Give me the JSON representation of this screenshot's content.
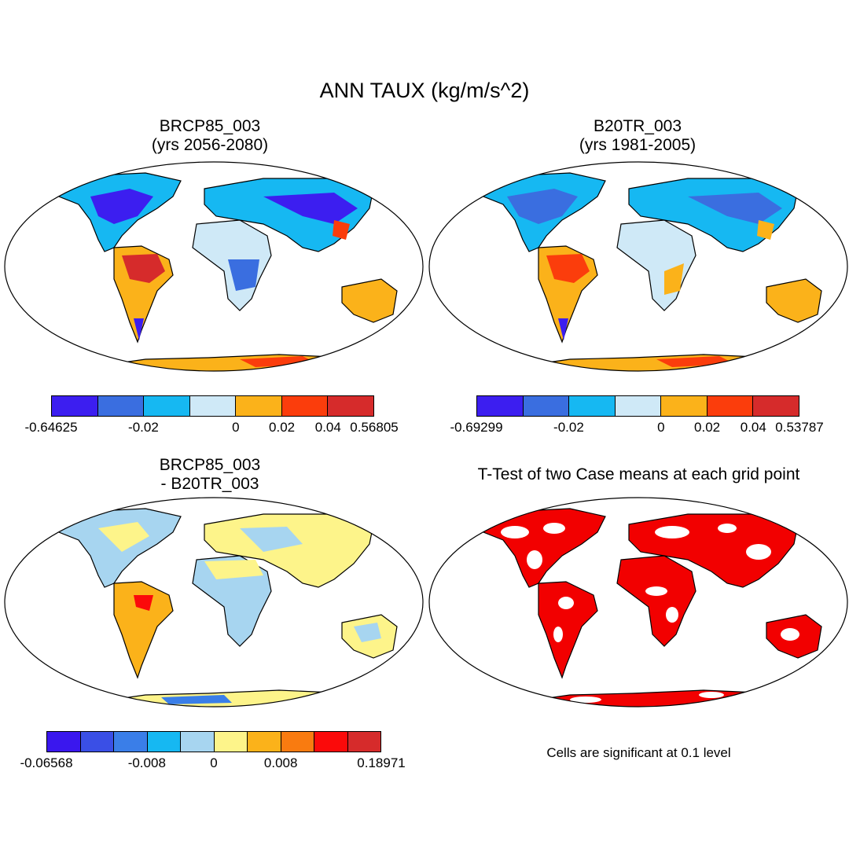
{
  "figure": {
    "title": "ANN TAUX (kg/m/s^2)"
  },
  "panels": [
    {
      "id": "top-left",
      "title_line1": "BRCP85_003",
      "title_line2": "(yrs 2056-2080)",
      "colorbar": {
        "colors": [
          "#3c1ef0",
          "#3a6ee0",
          "#16b8f2",
          "#cfe9f7",
          "#fbb21a",
          "#fb3d0c",
          "#d62b2b"
        ],
        "tick_labels": [
          "-0.64625",
          "-0.02",
          "0",
          "0.02",
          "0.04",
          "0.56805"
        ]
      }
    },
    {
      "id": "top-right",
      "title_line1": "B20TR_003",
      "title_line2": "(yrs 1981-2005)",
      "colorbar": {
        "colors": [
          "#3c1ef0",
          "#3a6ee0",
          "#16b8f2",
          "#cfe9f7",
          "#fbb21a",
          "#fb3d0c",
          "#d62b2b"
        ],
        "tick_labels": [
          "-0.69299",
          "-0.02",
          "0",
          "0.02",
          "0.04",
          "0.53787"
        ]
      }
    },
    {
      "id": "bottom-left",
      "title_line1": "BRCP85_003",
      "title_line2": "- B20TR_003",
      "colorbar": {
        "colors": [
          "#3a17ee",
          "#3a4fe6",
          "#3a7ee8",
          "#16b8f2",
          "#a7d5f0",
          "#fdf48a",
          "#fbb21a",
          "#f97b10",
          "#fb0a0a",
          "#d62b2b"
        ],
        "tick_labels": [
          "-0.06568",
          "-0.008",
          "0",
          "0.008",
          "0.18971"
        ]
      }
    },
    {
      "id": "bottom-right",
      "title_line1": "T-Test of two Case means at each grid point",
      "note": "Cells are significant at 0.1 level",
      "colors": {
        "significant": "#f20000"
      }
    }
  ]
}
